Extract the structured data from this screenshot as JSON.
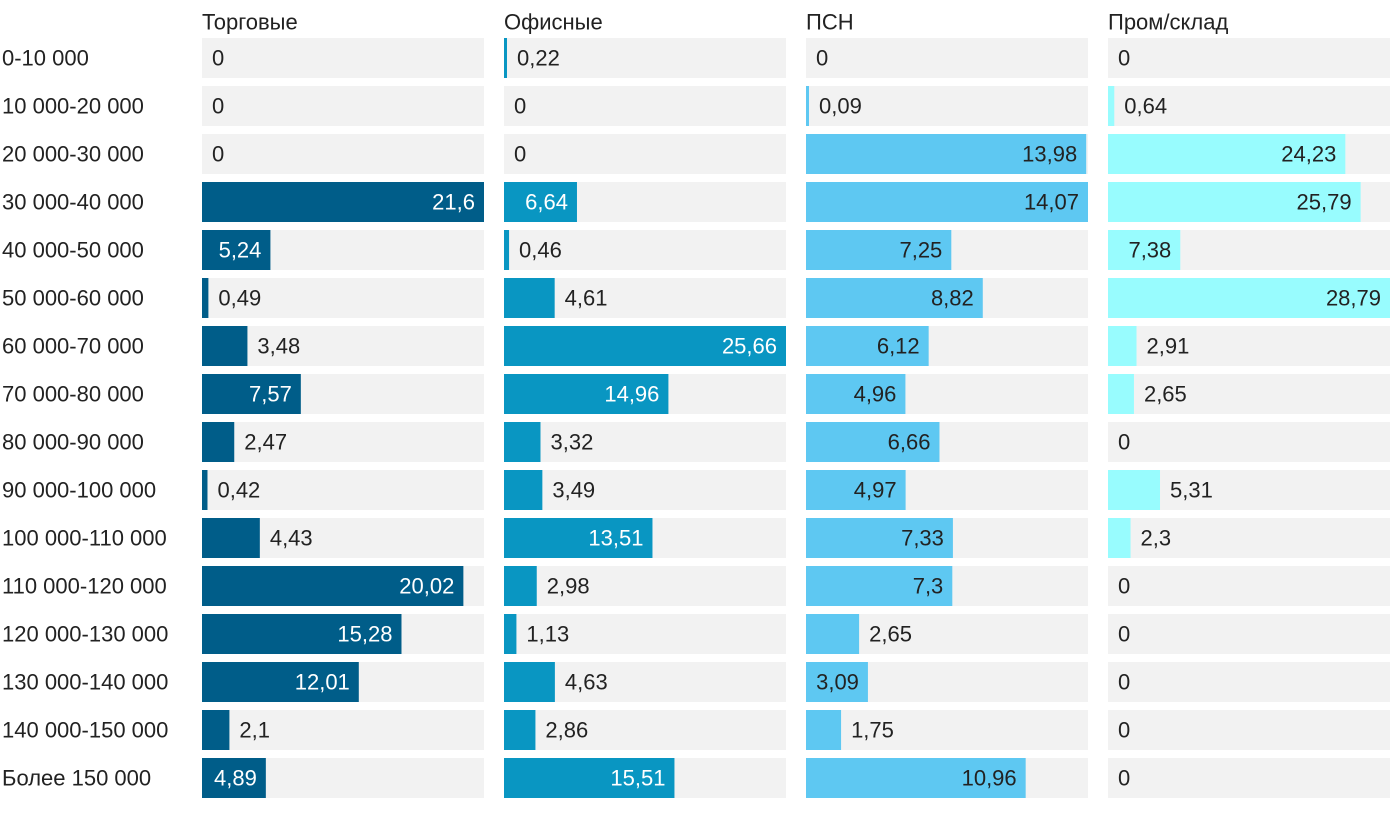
{
  "chart_data": {
    "type": "bar",
    "orientation": "horizontal",
    "layout": "small-multiples",
    "categories": [
      "0-10 000",
      "10 000-20 000",
      "20 000-30 000",
      "30 000-40 000",
      "40 000-50 000",
      "50 000-60 000",
      "60 000-70 000",
      "70 000-80 000",
      "80 000-90 000",
      "90 000-100 000",
      "100 000-110 000",
      "110 000-120 000",
      "120 000-130 000",
      "130 000-140 000",
      "140 000-150 000",
      "Более 150 000"
    ],
    "series": [
      {
        "name": "Торговые",
        "color": "#005d89",
        "values": [
          "0",
          "0",
          "0",
          "21,6",
          "5,24",
          "0,49",
          "3,48",
          "7,57",
          "2,47",
          "0,42",
          "4,43",
          "20,02",
          "15,28",
          "12,01",
          "2,1",
          "4,89"
        ]
      },
      {
        "name": "Офисные",
        "color": "#0996c2",
        "values": [
          "0,22",
          "0",
          "0",
          "6,64",
          "0,46",
          "4,61",
          "25,66",
          "14,96",
          "3,32",
          "3,49",
          "13,51",
          "2,98",
          "1,13",
          "4,63",
          "2,86",
          "15,51"
        ]
      },
      {
        "name": "ПСН",
        "color": "#5ec8f2",
        "values": [
          "0",
          "0,09",
          "13,98",
          "14,07",
          "7,25",
          "8,82",
          "6,12",
          "4,96",
          "6,66",
          "4,97",
          "7,33",
          "7,3",
          "2,65",
          "3,09",
          "1,75",
          "10,96"
        ]
      },
      {
        "name": "Пром/склад",
        "color": "#98fcfe",
        "values": [
          "0",
          "0,64",
          "24,23",
          "25,79",
          "7,38",
          "28,79",
          "2,91",
          "2,65",
          "0",
          "5,31",
          "2,3",
          "0",
          "0",
          "0",
          "0",
          "0"
        ]
      }
    ],
    "panel_max": [
      21.6,
      25.66,
      14.07,
      28.79
    ],
    "grid": false,
    "track_color": "#f2f2f2",
    "label_dark": "#222222",
    "label_light": "#ffffff"
  }
}
